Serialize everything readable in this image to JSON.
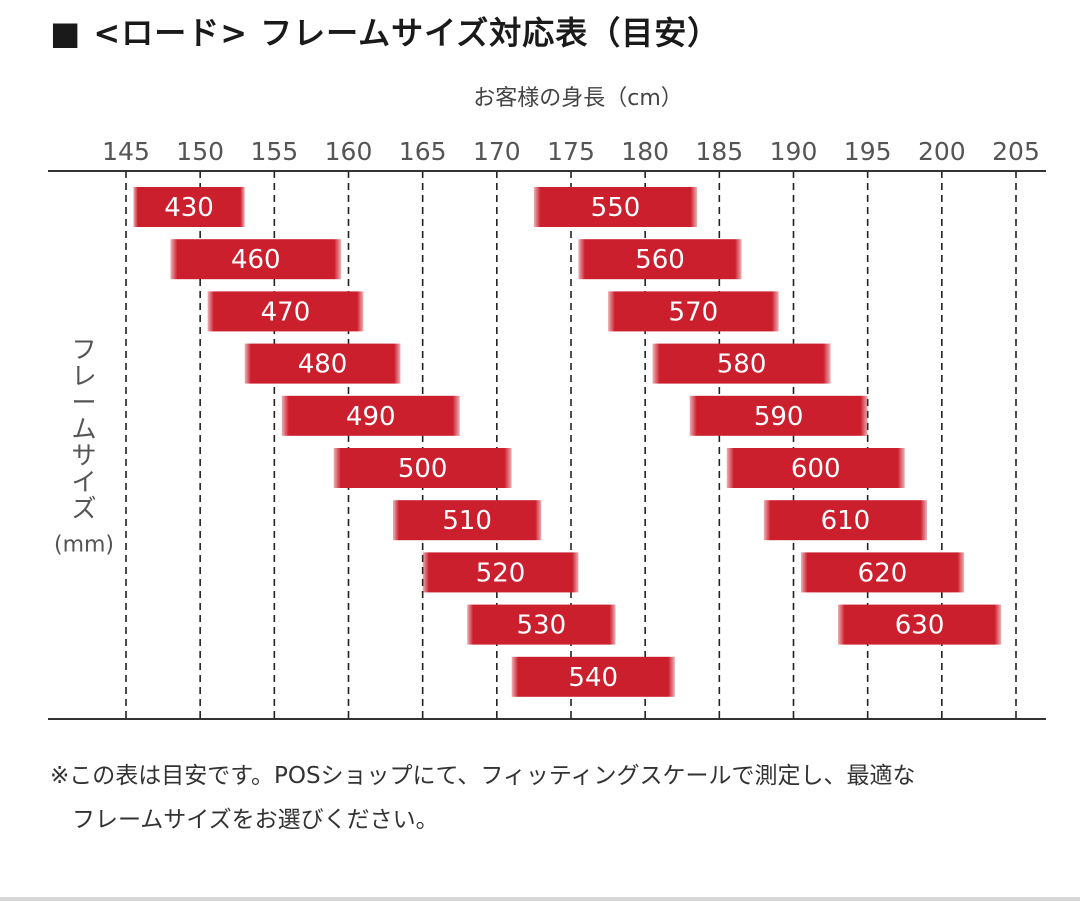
{
  "title": "■ <ロード> フレームサイズ対応表（目安）",
  "colors": {
    "bar": "#cc1f2d",
    "bar_text": "#ffffff",
    "axis": "#333333",
    "grid": "#222222",
    "text": "#555555"
  },
  "chart_data": {
    "type": "range-bar",
    "xlabel": "お客様の身長（cm）",
    "ylabel_lines": [
      "フ",
      "レ",
      "ー",
      "ム",
      "サ",
      "イ",
      "ズ",
      "(mm)"
    ],
    "xlim": [
      145,
      205
    ],
    "xticks": [
      145,
      150,
      155,
      160,
      165,
      170,
      175,
      180,
      185,
      190,
      195,
      200,
      205
    ],
    "grid": "vertical dashed",
    "columns": [
      {
        "bars": [
          {
            "label": "430",
            "min": 145.5,
            "max": 153
          },
          {
            "label": "460",
            "min": 148,
            "max": 159.5
          },
          {
            "label": "470",
            "min": 150.5,
            "max": 161
          },
          {
            "label": "480",
            "min": 153,
            "max": 163.5
          },
          {
            "label": "490",
            "min": 155.5,
            "max": 167.5
          },
          {
            "label": "500",
            "min": 159,
            "max": 171
          },
          {
            "label": "510",
            "min": 163,
            "max": 173
          },
          {
            "label": "520",
            "min": 165,
            "max": 175.5
          },
          {
            "label": "530",
            "min": 168,
            "max": 178
          },
          {
            "label": "540",
            "min": 171,
            "max": 182
          }
        ]
      },
      {
        "bars": [
          {
            "label": "550",
            "min": 172.5,
            "max": 183.5
          },
          {
            "label": "560",
            "min": 175.5,
            "max": 186.5
          },
          {
            "label": "570",
            "min": 177.5,
            "max": 189
          },
          {
            "label": "580",
            "min": 180.5,
            "max": 192.5
          },
          {
            "label": "590",
            "min": 183,
            "max": 195
          },
          {
            "label": "600",
            "min": 185.5,
            "max": 197.5
          },
          {
            "label": "610",
            "min": 188,
            "max": 199
          },
          {
            "label": "620",
            "min": 190.5,
            "max": 201.5
          },
          {
            "label": "630",
            "min": 193,
            "max": 204
          }
        ]
      }
    ]
  },
  "notes": {
    "line1": "※この表は目安です。POSショップにて、フィッティングスケールで測定し、最適な",
    "line2": "フレームサイズをお選びください。"
  }
}
